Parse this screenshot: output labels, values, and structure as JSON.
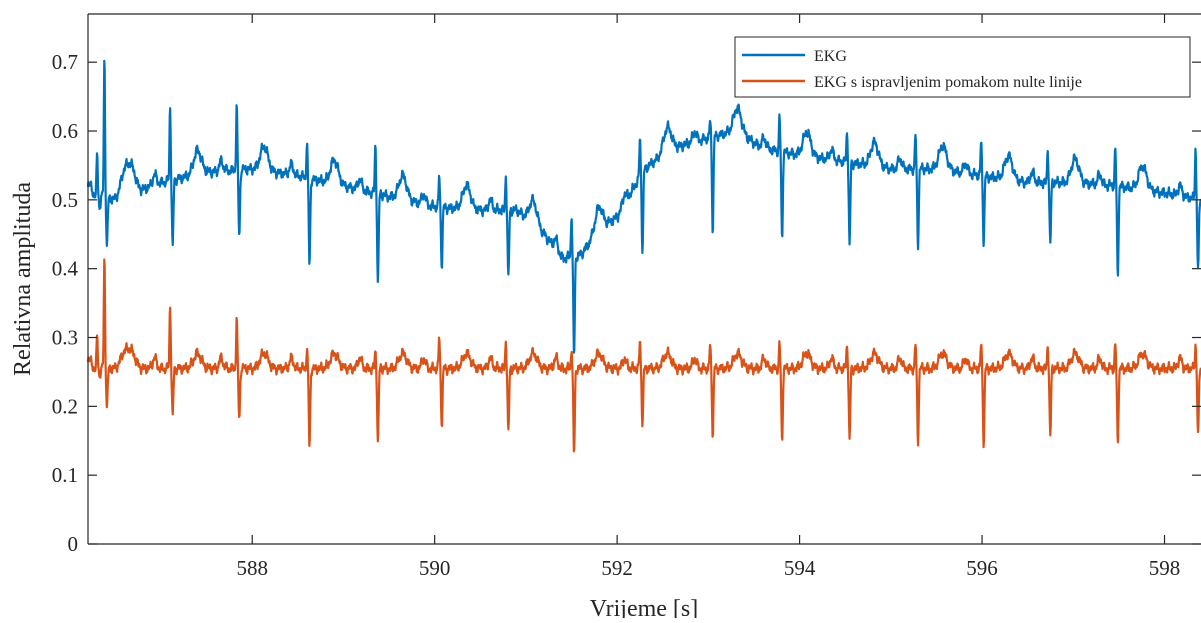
{
  "chart_data": {
    "type": "line",
    "title": "",
    "xlabel": "Vrijeme [s]",
    "ylabel": "Relativna amplituda",
    "xlim": [
      586.2,
      598.4
    ],
    "ylim": [
      0,
      0.77
    ],
    "x_ticks": [
      588,
      590,
      592,
      594,
      596,
      598
    ],
    "x_tick_labels": [
      "588",
      "590",
      "592",
      "594",
      "596",
      "598"
    ],
    "y_ticks": [
      0,
      0.1,
      0.2,
      0.3,
      0.4,
      0.5,
      0.6,
      0.7
    ],
    "y_tick_labels": [
      "0",
      "0.1",
      "0.2",
      "0.3",
      "0.4",
      "0.5",
      "0.6",
      "0.7"
    ],
    "grid": false,
    "legend": "top-right",
    "beats": {
      "times": [
        586.3,
        586.38,
        587.1,
        587.83,
        588.6,
        589.35,
        590.05,
        590.78,
        591.5,
        592.25,
        593.02,
        593.78,
        594.52,
        595.27,
        595.99,
        596.72,
        597.46,
        598.34
      ],
      "ecg_peak": [
        0.565,
        0.71,
        0.64,
        0.64,
        0.585,
        0.58,
        0.535,
        0.535,
        0.48,
        0.59,
        0.615,
        0.62,
        0.6,
        0.595,
        0.585,
        0.575,
        0.575,
        0.575
      ],
      "ecg_trough": [
        0.49,
        0.435,
        0.43,
        0.445,
        0.405,
        0.38,
        0.405,
        0.385,
        0.27,
        0.42,
        0.455,
        0.445,
        0.435,
        0.435,
        0.44,
        0.435,
        0.39,
        0.395
      ],
      "corrected_peak": [
        0.3,
        0.42,
        0.35,
        0.33,
        0.285,
        0.28,
        0.3,
        0.295,
        0.285,
        0.295,
        0.29,
        0.29,
        0.29,
        0.29,
        0.29,
        0.29,
        0.29,
        0.29
      ],
      "corrected_trough": [
        0.245,
        0.2,
        0.185,
        0.18,
        0.14,
        0.148,
        0.175,
        0.16,
        0.128,
        0.175,
        0.16,
        0.15,
        0.152,
        0.15,
        0.147,
        0.155,
        0.148,
        0.155
      ]
    },
    "series": [
      {
        "name": "EKG",
        "color": "#0072bd",
        "baseline": {
          "x": [
            586.2,
            586.5,
            587.0,
            587.5,
            588.0,
            588.5,
            589.0,
            589.5,
            590.0,
            590.5,
            590.9,
            591.2,
            591.4,
            591.6,
            591.8,
            592.0,
            592.3,
            592.6,
            593.0,
            593.3,
            593.6,
            594.0,
            594.5,
            595.0,
            595.5,
            596.0,
            596.5,
            597.0,
            597.5,
            598.0,
            598.4
          ],
          "y": [
            0.51,
            0.5,
            0.525,
            0.54,
            0.545,
            0.535,
            0.52,
            0.505,
            0.49,
            0.485,
            0.485,
            0.45,
            0.415,
            0.42,
            0.455,
            0.475,
            0.545,
            0.575,
            0.59,
            0.6,
            0.575,
            0.565,
            0.555,
            0.545,
            0.545,
            0.535,
            0.525,
            0.525,
            0.52,
            0.51,
            0.5
          ]
        }
      },
      {
        "name": "EKG s ispravljenim pomakom nulte linije",
        "color": "#d95319",
        "baseline": {
          "x": [
            586.2,
            598.4
          ],
          "y": [
            0.255,
            0.255
          ]
        }
      }
    ]
  }
}
